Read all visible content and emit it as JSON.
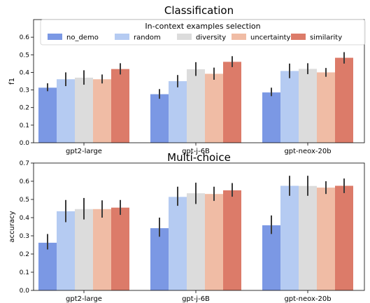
{
  "chart_data": [
    {
      "type": "bar",
      "title": "Classification",
      "xlabel": "",
      "ylabel": "f1",
      "ylim": [
        0,
        0.7
      ],
      "yticks": [
        0.0,
        0.1,
        0.2,
        0.3,
        0.4,
        0.5,
        0.6
      ],
      "categories": [
        "gpt2-large",
        "gpt-j-6B",
        "gpt-neox-20b"
      ],
      "legend": {
        "title": "In-context examples selection",
        "placement": "top-center"
      },
      "series": [
        {
          "name": "no_demo",
          "color": "#7b98e4",
          "values": [
            0.313,
            0.276,
            0.286
          ],
          "err_low": [
            0.293,
            0.25,
            0.265
          ],
          "err_high": [
            0.338,
            0.305,
            0.313
          ]
        },
        {
          "name": "random",
          "color": "#b5cbf2",
          "values": [
            0.361,
            0.35,
            0.408
          ],
          "err_low": [
            0.322,
            0.315,
            0.367
          ],
          "err_high": [
            0.4,
            0.385,
            0.45
          ]
        },
        {
          "name": "diversity",
          "color": "#dcdcdc",
          "values": [
            0.37,
            0.418,
            0.42
          ],
          "err_low": [
            0.33,
            0.38,
            0.39
          ],
          "err_high": [
            0.412,
            0.458,
            0.452
          ]
        },
        {
          "name": "uncertainty",
          "color": "#f0bca5",
          "values": [
            0.361,
            0.392,
            0.4
          ],
          "err_low": [
            0.337,
            0.358,
            0.375
          ],
          "err_high": [
            0.388,
            0.427,
            0.425
          ]
        },
        {
          "name": "similarity",
          "color": "#dc7b69",
          "values": [
            0.419,
            0.46,
            0.483
          ],
          "err_low": [
            0.388,
            0.43,
            0.45
          ],
          "err_high": [
            0.452,
            0.492,
            0.515
          ]
        }
      ]
    },
    {
      "type": "bar",
      "title": "Multi-choice",
      "xlabel": "",
      "ylabel": "accuracy",
      "ylim": [
        0,
        0.7
      ],
      "yticks": [
        0.0,
        0.1,
        0.2,
        0.3,
        0.4,
        0.5,
        0.6,
        0.7
      ],
      "categories": [
        "gpt2-large",
        "gpt-j-6B",
        "gpt-neox-20b"
      ],
      "series": [
        {
          "name": "no_demo",
          "color": "#7b98e4",
          "values": [
            0.262,
            0.342,
            0.358
          ],
          "err_low": [
            0.225,
            0.295,
            0.31
          ],
          "err_high": [
            0.31,
            0.4,
            0.412
          ]
        },
        {
          "name": "random",
          "color": "#b5cbf2",
          "values": [
            0.435,
            0.514,
            0.575
          ],
          "err_low": [
            0.375,
            0.465,
            0.52
          ],
          "err_high": [
            0.497,
            0.57,
            0.63
          ]
        },
        {
          "name": "diversity",
          "color": "#dcdcdc",
          "values": [
            0.447,
            0.534,
            0.574
          ],
          "err_low": [
            0.39,
            0.475,
            0.52
          ],
          "err_high": [
            0.508,
            0.592,
            0.63
          ]
        },
        {
          "name": "uncertainty",
          "color": "#f0bca5",
          "values": [
            0.447,
            0.53,
            0.565
          ],
          "err_low": [
            0.4,
            0.492,
            0.53
          ],
          "err_high": [
            0.495,
            0.57,
            0.6
          ]
        },
        {
          "name": "similarity",
          "color": "#dc7b69",
          "values": [
            0.455,
            0.55,
            0.575
          ],
          "err_low": [
            0.415,
            0.515,
            0.535
          ],
          "err_high": [
            0.497,
            0.59,
            0.615
          ]
        }
      ]
    }
  ]
}
